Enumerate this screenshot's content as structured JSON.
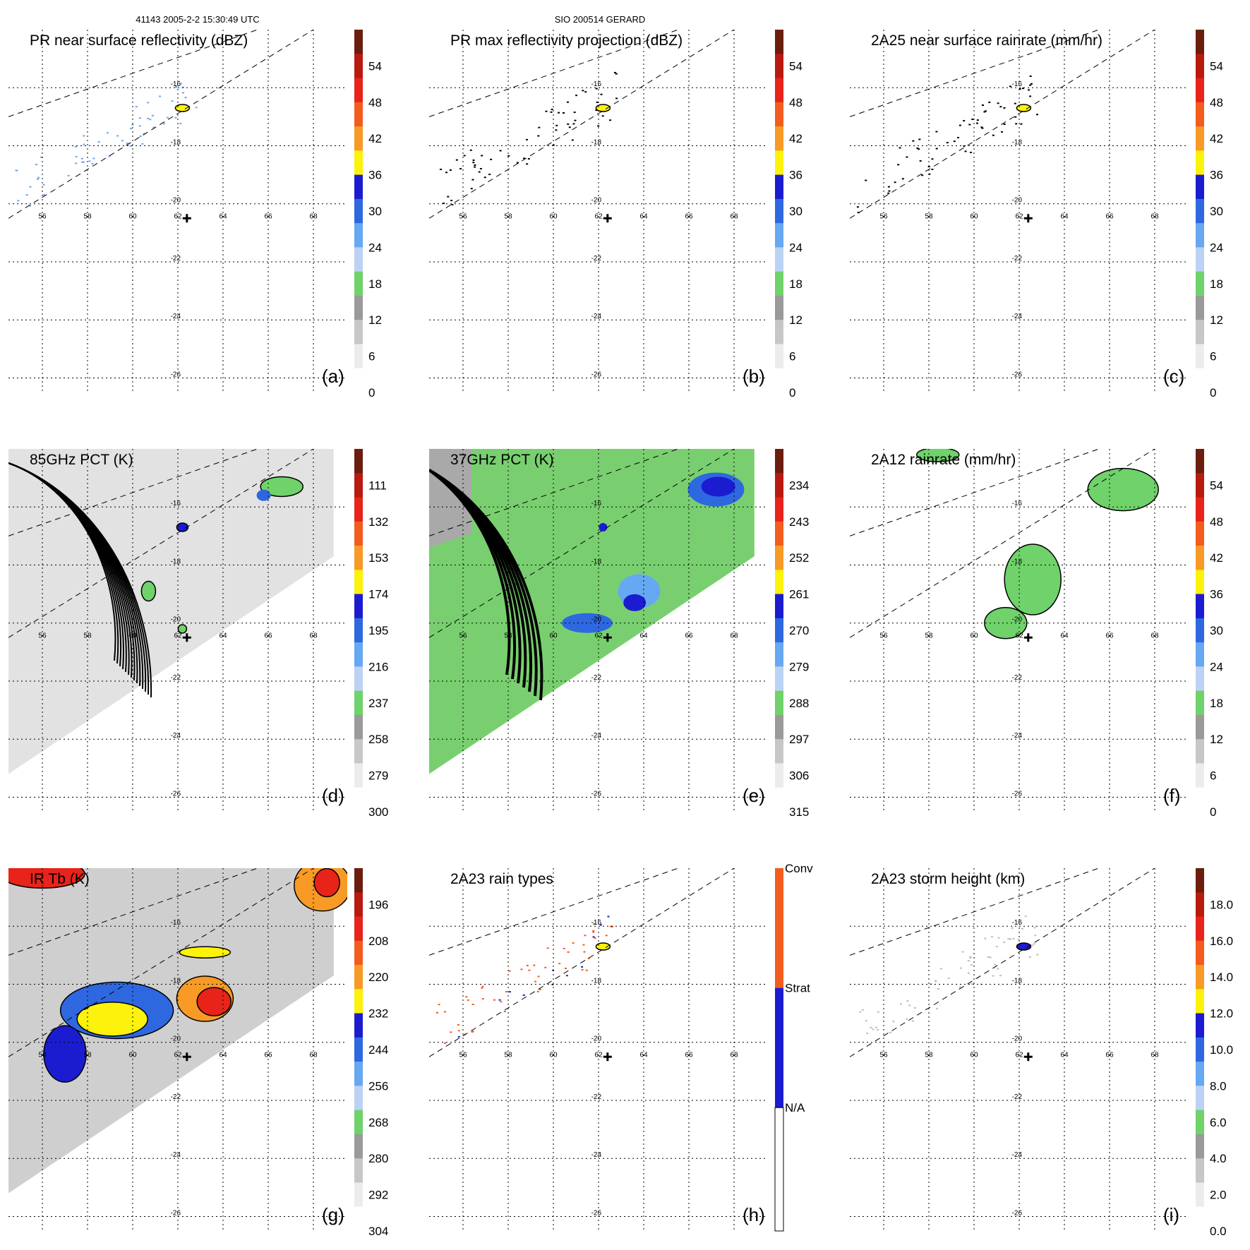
{
  "header": {
    "orbit_time": "41143 2005-2-2 15:30:49 UTC",
    "storm": "SIO 200514 GERARD"
  },
  "grid": {
    "lon_ticks": [
      "56",
      "58",
      "60",
      "62",
      "64",
      "66",
      "68"
    ],
    "lat_ticks": [
      "-16",
      "-18",
      "-20",
      "-22",
      "-24",
      "-26"
    ],
    "lon_range": [
      54.5,
      69.5
    ],
    "lat_range": [
      -14.0,
      -26.5
    ],
    "storm_center": {
      "lon": 62.4,
      "lat": -20.5
    }
  },
  "chart_data": [
    {
      "type": "heatmap",
      "id": "a",
      "title": "PR near surface reflectivity (dBZ)",
      "panel_label": "(a)",
      "background": "white",
      "swath": "pr",
      "colorbar": {
        "labels": [
          "54",
          "48",
          "42",
          "36",
          "30",
          "24",
          "18",
          "12",
          "6",
          "0"
        ]
      }
    },
    {
      "type": "heatmap",
      "id": "b",
      "title": "PR max reflectivity projection (dBZ)",
      "panel_label": "(b)",
      "background": "white",
      "swath": "pr",
      "colorbar": {
        "labels": [
          "54",
          "48",
          "42",
          "36",
          "30",
          "24",
          "18",
          "12",
          "6",
          "0"
        ]
      }
    },
    {
      "type": "heatmap",
      "id": "c",
      "title": "2A25 near surface rainrate (mm/hr)",
      "panel_label": "(c)",
      "background": "white",
      "swath": "pr",
      "colorbar": {
        "labels": [
          "54",
          "48",
          "42",
          "36",
          "30",
          "24",
          "18",
          "12",
          "6",
          "0"
        ]
      }
    },
    {
      "type": "heatmap",
      "id": "d",
      "title": "85GHz PCT (K)",
      "panel_label": "(d)",
      "background": "lightgray",
      "swath": "tmi",
      "colorbar": {
        "labels": [
          "111",
          "132",
          "153",
          "174",
          "195",
          "216",
          "237",
          "258",
          "279",
          "300"
        ]
      }
    },
    {
      "type": "heatmap",
      "id": "e",
      "title": "37GHz PCT (K)",
      "panel_label": "(e)",
      "background": "green",
      "swath": "tmi",
      "colorbar": {
        "labels": [
          "234",
          "243",
          "252",
          "261",
          "270",
          "279",
          "288",
          "297",
          "306",
          "315"
        ]
      }
    },
    {
      "type": "heatmap",
      "id": "f",
      "title": "2A12 rainrate (mm/hr)",
      "panel_label": "(f)",
      "background": "white",
      "swath": "pr",
      "colorbar": {
        "labels": [
          "54",
          "48",
          "42",
          "36",
          "30",
          "24",
          "18",
          "12",
          "6",
          "0"
        ]
      }
    },
    {
      "type": "heatmap",
      "id": "g",
      "title": "IR Tb (K)",
      "panel_label": "(g)",
      "background": "ir",
      "swath": "tmi",
      "colorbar": {
        "labels": [
          "196",
          "208",
          "220",
          "232",
          "244",
          "256",
          "268",
          "280",
          "292",
          "304"
        ]
      }
    },
    {
      "type": "heatmap",
      "id": "h",
      "title": "2A23 rain types",
      "panel_label": "(h)",
      "background": "white",
      "swath": "pr",
      "colorbar": {
        "labels": [
          "Conv",
          "Strat",
          "N/A"
        ]
      }
    },
    {
      "type": "heatmap",
      "id": "i",
      "title": "2A23 storm height (km)",
      "panel_label": "(i)",
      "background": "white",
      "swath": "pr",
      "colorbar": {
        "labels": [
          "18.0",
          "16.0",
          "14.0",
          "12.0",
          "10.0",
          "8.0",
          "6.0",
          "4.0",
          "2.0",
          "0.0"
        ]
      }
    }
  ],
  "colors": {
    "scale": [
      "#6b1d0e",
      "#b81a10",
      "#e8231a",
      "#f35c1e",
      "#f79a26",
      "#fcf20b",
      "#1b1ccf",
      "#2e68e0",
      "#66a8f2",
      "#bcd2f4",
      "#6fd26a",
      "#9a9a9a",
      "#c7c7c7",
      "#ececec",
      "#ffffff"
    ],
    "green_bg": "#79cf6f",
    "swath_gray": "#e2e2e2"
  }
}
